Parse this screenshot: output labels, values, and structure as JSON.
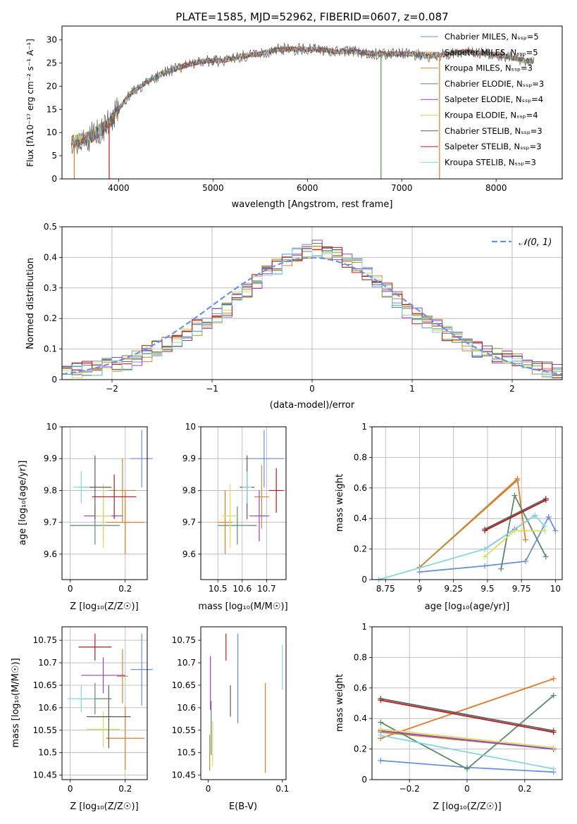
{
  "spec_panel": {
    "title": "PLATE=1585, MJD=52962, FIBERID=0607, z=0.087",
    "xlabel": "wavelength [Angstrom, rest frame]",
    "ylabel": "Flux [fλ10⁻¹⁷ erg cm⁻² s⁻¹ A⁻¹]",
    "legend": [
      "Chabrier MILES, Nₛₛₚ=5",
      "Salpeter MILES, Nₛₛₚ=5",
      "Kroupa MILES, Nₛₛₚ=3",
      "Chabrier ELODIE, Nₛₛₚ=3",
      "Salpeter ELODIE, Nₛₛₚ=4",
      "Kroupa ELODIE, Nₛₛₚ=4",
      "Chabrier STELIB, Nₛₛₚ=3",
      "Salpeter STELIB, Nₛₛₚ=3",
      "Kroupa STELIB, Nₛₛₚ=3"
    ]
  },
  "colors": [
    "#6b8fd8",
    "#e07b2c",
    "#c28c3c",
    "#5a8a6a",
    "#9b3fbf",
    "#d6df5a",
    "#5a5a5a",
    "#b01c1c",
    "#84d6e0"
  ],
  "chart_data": [
    {
      "type": "line",
      "title": "PLATE=1585, MJD=52962, FIBERID=0607, z=0.087",
      "xlabel": "wavelength [Angstrom, rest frame]",
      "ylabel": "Flux [fλ10⁻¹⁷ erg cm⁻² s⁻¹ A⁻¹]",
      "xlim": [
        3400,
        8700
      ],
      "ylim": [
        0,
        33
      ],
      "xticks": [
        4000,
        5000,
        6000,
        7000,
        8000
      ],
      "yticks": [
        0,
        5,
        10,
        15,
        20,
        25,
        30
      ],
      "x": [
        3500,
        3700,
        3900,
        4100,
        4300,
        4500,
        4700,
        4900,
        5100,
        5300,
        5500,
        5700,
        5900,
        6100,
        6300,
        6500,
        6700,
        6900,
        7100,
        7300,
        7500,
        7700,
        7900,
        8100,
        8300
      ],
      "y": [
        8,
        9,
        12,
        18,
        21,
        23,
        24.5,
        25.5,
        25.5,
        26.5,
        27,
        28,
        28,
        28,
        27.5,
        27.5,
        27,
        27,
        27,
        26.5,
        27,
        27.5,
        27,
        26.5,
        25.5
      ],
      "grid": false,
      "legend_position": "upper-right"
    },
    {
      "type": "bar",
      "xlabel": "(data-model)/error",
      "ylabel": "Normed distribution",
      "xlim": [
        -2.5,
        2.5
      ],
      "ylim": [
        0,
        0.5
      ],
      "xticks": [
        -2,
        -1,
        0,
        1,
        2
      ],
      "yticks": [
        0.0,
        0.1,
        0.2,
        0.3,
        0.4,
        0.5
      ],
      "bins": [
        -2.5,
        -2.4,
        -2.3,
        -2.2,
        -2.1,
        -2.0,
        -1.9,
        -1.8,
        -1.7,
        -1.6,
        -1.5,
        -1.4,
        -1.3,
        -1.2,
        -1.1,
        -1.0,
        -0.9,
        -0.8,
        -0.7,
        -0.6,
        -0.5,
        -0.4,
        -0.3,
        -0.2,
        -0.1,
        0.0,
        0.1,
        0.2,
        0.3,
        0.4,
        0.5,
        0.6,
        0.7,
        0.8,
        0.9,
        1.0,
        1.1,
        1.2,
        1.3,
        1.4,
        1.5,
        1.6,
        1.7,
        1.8,
        1.9,
        2.0,
        2.1,
        2.2,
        2.3,
        2.4
      ],
      "values": [
        0.03,
        0.03,
        0.035,
        0.04,
        0.045,
        0.05,
        0.055,
        0.07,
        0.085,
        0.1,
        0.115,
        0.13,
        0.15,
        0.17,
        0.19,
        0.21,
        0.23,
        0.26,
        0.29,
        0.32,
        0.35,
        0.37,
        0.39,
        0.41,
        0.42,
        0.43,
        0.42,
        0.41,
        0.39,
        0.37,
        0.35,
        0.32,
        0.29,
        0.26,
        0.23,
        0.21,
        0.19,
        0.17,
        0.15,
        0.13,
        0.11,
        0.1,
        0.09,
        0.08,
        0.07,
        0.06,
        0.05,
        0.045,
        0.035,
        0.025
      ],
      "legend": [
        "𝒩(0, 1)"
      ],
      "grid": true,
      "legend_position": "upper-right"
    },
    {
      "type": "scatter",
      "xlabel": "Z [log₁₀(Z/Z☉)]",
      "ylabel": "age  [log₁₀(age/yr)]",
      "xlim": [
        -0.03,
        0.28
      ],
      "ylim": [
        9.52,
        10.0
      ],
      "xticks": [
        0.0,
        0.2
      ],
      "yticks": [
        9.6,
        9.7,
        9.8,
        9.9,
        10.0
      ],
      "points": [
        {
          "x": 0.26,
          "y": 9.9,
          "xerr": 0.04,
          "yerr": 0.09
        },
        {
          "x": 0.2,
          "y": 9.7,
          "xerr": 0.07,
          "yerr": 0.1
        },
        {
          "x": 0.19,
          "y": 9.8,
          "xerr": 0.05,
          "yerr": 0.1
        },
        {
          "x": 0.09,
          "y": 9.69,
          "xerr": 0.09,
          "yerr": 0.06
        },
        {
          "x": 0.12,
          "y": 9.72,
          "xerr": 0.07,
          "yerr": 0.08
        },
        {
          "x": 0.12,
          "y": 9.72,
          "xerr": 0.03,
          "yerr": 0.1
        },
        {
          "x": 0.09,
          "y": 9.81,
          "xerr": 0.06,
          "yerr": 0.1
        },
        {
          "x": 0.16,
          "y": 9.78,
          "xerr": 0.08,
          "yerr": 0.07
        },
        {
          "x": 0.04,
          "y": 9.81,
          "xerr": 0.03,
          "yerr": 0.05
        }
      ],
      "grid": true
    },
    {
      "type": "scatter",
      "xlabel": "mass [log₁₀(M/M☉)]",
      "xlim": [
        10.43,
        10.78
      ],
      "ylim": [
        9.52,
        10.0
      ],
      "xticks": [
        10.5,
        10.6,
        10.7
      ],
      "yticks": [
        9.6,
        9.7,
        9.8,
        9.9,
        10.0
      ],
      "points": [
        {
          "x": 10.69,
          "y": 9.9,
          "xerr": 0.08,
          "yerr": 0.09
        },
        {
          "x": 10.53,
          "y": 9.7,
          "xerr": 0.03,
          "yerr": 0.1
        },
        {
          "x": 10.68,
          "y": 9.78,
          "xerr": 0.03,
          "yerr": 0.1
        },
        {
          "x": 10.58,
          "y": 9.69,
          "xerr": 0.08,
          "yerr": 0.06
        },
        {
          "x": 10.67,
          "y": 9.72,
          "xerr": 0.04,
          "yerr": 0.08
        },
        {
          "x": 10.55,
          "y": 9.72,
          "xerr": 0.03,
          "yerr": 0.1
        },
        {
          "x": 10.62,
          "y": 9.81,
          "xerr": 0.03,
          "yerr": 0.1
        },
        {
          "x": 10.74,
          "y": 9.8,
          "xerr": 0.03,
          "yerr": 0.07
        },
        {
          "x": 10.62,
          "y": 9.81,
          "xerr": 0.02,
          "yerr": 0.05
        }
      ],
      "grid": true
    },
    {
      "type": "line",
      "xlabel": "age  [log₁₀(age/yr)]",
      "ylabel": "mass weight",
      "xlim": [
        8.65,
        10.05
      ],
      "ylim": [
        0,
        1.0
      ],
      "xticks": [
        8.75,
        9.0,
        9.25,
        9.5,
        9.75,
        10.0
      ],
      "yticks": [
        0.0,
        0.2,
        0.4,
        0.6,
        0.8,
        1.0
      ],
      "series": [
        {
          "x": [
            9.0,
            9.48,
            9.78,
            9.95,
            10.0
          ],
          "y": [
            0.05,
            0.09,
            0.12,
            0.41,
            0.32
          ]
        },
        {
          "x": [
            9.0,
            9.72,
            9.78
          ],
          "y": [
            0.08,
            0.66,
            0.26
          ]
        },
        {
          "x": [
            9.0,
            9.72
          ],
          "y": [
            0.08,
            0.65
          ]
        },
        {
          "x": [
            9.6,
            9.7,
            9.93
          ],
          "y": [
            0.07,
            0.55,
            0.15
          ]
        },
        {
          "x": [
            9.48,
            9.7,
            9.85
          ],
          "y": [
            0.2,
            0.33,
            0.42
          ]
        },
        {
          "x": [
            9.48,
            9.7,
            9.92
          ],
          "y": [
            0.15,
            0.32,
            0.32
          ]
        },
        {
          "x": [
            9.48,
            9.93
          ],
          "y": [
            0.33,
            0.53
          ]
        },
        {
          "x": [
            9.48,
            9.93
          ],
          "y": [
            0.32,
            0.52
          ]
        },
        {
          "x": [
            8.7,
            9.48,
            9.85,
            9.92
          ],
          "y": [
            0.0,
            0.2,
            0.42,
            0.35
          ]
        }
      ],
      "grid": true
    },
    {
      "type": "scatter",
      "xlabel": "Z [log₁₀(Z/Z☉)]",
      "ylabel": "mass [log₁₀(M/M☉)]",
      "xlim": [
        -0.03,
        0.28
      ],
      "ylim": [
        10.44,
        10.78
      ],
      "xticks": [
        0.0,
        0.2
      ],
      "yticks": [
        10.45,
        10.5,
        10.55,
        10.6,
        10.65,
        10.7,
        10.75
      ],
      "points": [
        {
          "x": 0.26,
          "y": 10.685,
          "xerr": 0.04,
          "yerr": 0.08
        },
        {
          "x": 0.2,
          "y": 10.532,
          "xerr": 0.07,
          "yerr": 0.07
        },
        {
          "x": 0.19,
          "y": 10.67,
          "xerr": 0.02,
          "yerr": 0.06
        },
        {
          "x": 0.09,
          "y": 10.62,
          "xerr": 0.06,
          "yerr": 0.035
        },
        {
          "x": 0.12,
          "y": 10.672,
          "xerr": 0.08,
          "yerr": 0.04
        },
        {
          "x": 0.12,
          "y": 10.552,
          "xerr": 0.06,
          "yerr": 0.04
        },
        {
          "x": 0.14,
          "y": 10.58,
          "xerr": 0.08,
          "yerr": 0.07
        },
        {
          "x": 0.09,
          "y": 10.735,
          "xerr": 0.06,
          "yerr": 0.03
        },
        {
          "x": 0.04,
          "y": 10.62,
          "xerr": 0.05,
          "yerr": 0.03
        }
      ],
      "grid": true
    },
    {
      "type": "scatter",
      "xlabel": "E(B-V)",
      "xlim": [
        -0.01,
        0.105
      ],
      "ylim": [
        10.44,
        10.78
      ],
      "xticks": [
        0.0,
        0.1
      ],
      "yticks": [
        10.45,
        10.5,
        10.55,
        10.6,
        10.65,
        10.7,
        10.75
      ],
      "points": [
        {
          "x": 0.04,
          "y": 10.665,
          "yerr": 0.1
        },
        {
          "x": 0.077,
          "y": 10.555,
          "yerr": 0.1
        },
        {
          "x": 0.002,
          "y": 10.5,
          "yerr": 0.04
        },
        {
          "x": 0.004,
          "y": 10.555,
          "yerr": 0.06
        },
        {
          "x": 0.003,
          "y": 10.655,
          "yerr": 0.06
        },
        {
          "x": 0.006,
          "y": 10.52,
          "yerr": 0.05
        },
        {
          "x": 0.03,
          "y": 10.615,
          "yerr": 0.035
        },
        {
          "x": 0.024,
          "y": 10.735,
          "yerr": 0.03
        },
        {
          "x": 0.1,
          "y": 10.69,
          "yerr": 0.05
        }
      ],
      "grid": false
    },
    {
      "type": "line",
      "xlabel": "Z [log₁₀(Z/Z☉)]",
      "ylabel": "mass weight",
      "xlim": [
        -0.33,
        0.33
      ],
      "ylim": [
        0,
        1.0
      ],
      "xticks": [
        -0.2,
        0.0,
        0.2
      ],
      "yticks": [
        0.0,
        0.2,
        0.4,
        0.6,
        0.8,
        1.0
      ],
      "series": [
        {
          "x": [
            -0.3,
            0.0,
            0.3
          ],
          "y": [
            0.125,
            0.08,
            0.05
          ]
        },
        {
          "x": [
            -0.3,
            0.3
          ],
          "y": [
            0.27,
            0.66
          ]
        },
        {
          "x": [
            -0.3,
            0.3
          ],
          "y": [
            0.31,
            0.2
          ]
        },
        {
          "x": [
            -0.3,
            0.0,
            0.3
          ],
          "y": [
            0.375,
            0.07,
            0.55
          ]
        },
        {
          "x": [
            -0.3,
            0.3
          ],
          "y": [
            0.32,
            0.2
          ]
        },
        {
          "x": [
            -0.3,
            0.3
          ],
          "y": [
            0.33,
            0.21
          ]
        },
        {
          "x": [
            -0.3,
            0.3
          ],
          "y": [
            0.53,
            0.32
          ]
        },
        {
          "x": [
            -0.3,
            0.3
          ],
          "y": [
            0.52,
            0.31
          ]
        },
        {
          "x": [
            -0.3,
            0.3
          ],
          "y": [
            0.29,
            0.07
          ]
        }
      ],
      "grid": true
    }
  ]
}
